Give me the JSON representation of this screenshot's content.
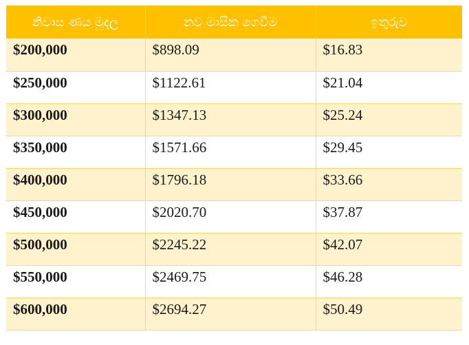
{
  "table": {
    "headers": [
      "නිවාස ණය මුදල",
      "නව මාසික ගෙවීම",
      "ඉතුරුව"
    ],
    "rows": [
      [
        "$200,000",
        "$898.09",
        "$16.83"
      ],
      [
        "$250,000",
        "$1122.61",
        "$21.04"
      ],
      [
        "$300,000",
        "$1347.13",
        "$25.24"
      ],
      [
        "$350,000",
        "$1571.66",
        "$29.45"
      ],
      [
        "$400,000",
        "$1796.18",
        "$33.66"
      ],
      [
        "$450,000",
        "$2020.70",
        "$37.87"
      ],
      [
        "$500,000",
        "$2245.22",
        "$42.07"
      ],
      [
        "$550,000",
        "$2469.75",
        "$46.28"
      ],
      [
        "$600,000",
        "$2694.27",
        "$50.49"
      ]
    ]
  },
  "colors": {
    "header_bg": "#ffc000",
    "header_text": "#ffffff",
    "band_row": "#fff2cc",
    "grid": "#ffd966"
  }
}
